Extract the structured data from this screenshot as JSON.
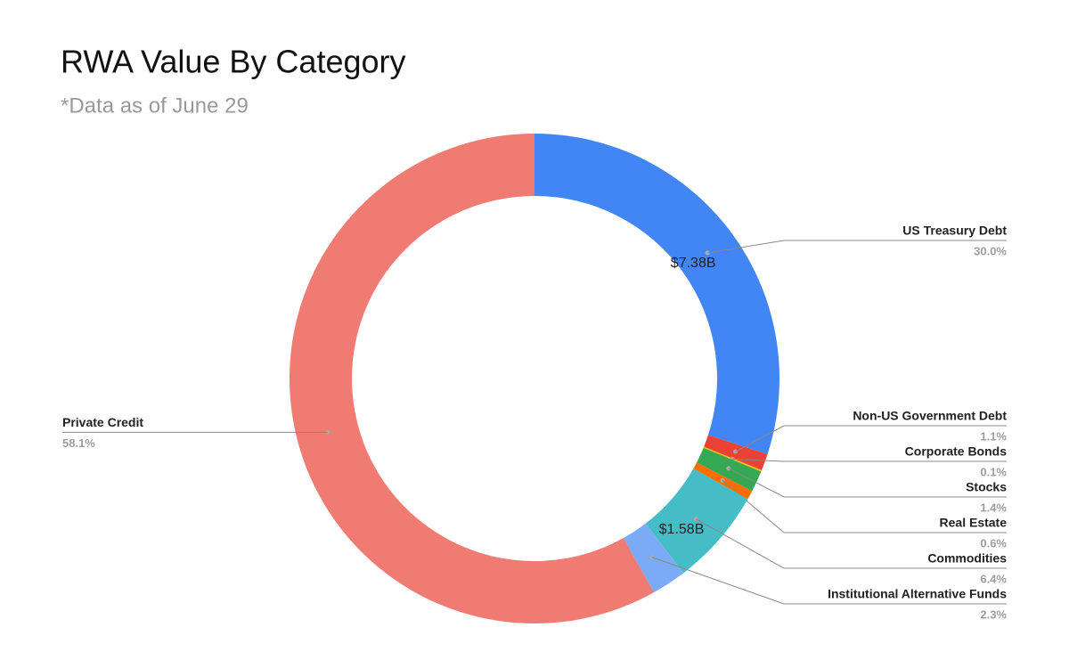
{
  "chart_data": {
    "type": "donut",
    "title": "RWA Value By Category",
    "subtitle": "*Data as of June 29",
    "categories": [
      "US Treasury Debt",
      "Non-US Government Debt",
      "Corporate Bonds",
      "Stocks",
      "Real Estate",
      "Commodities",
      "Institutional Alternative Funds",
      "Private Credit"
    ],
    "values": [
      30.0,
      1.1,
      0.1,
      1.4,
      0.6,
      6.4,
      2.3,
      58.1
    ],
    "value_labels": [
      "30.0%",
      "1.1%",
      "0.1%",
      "1.4%",
      "0.6%",
      "6.4%",
      "2.3%",
      "58.1%"
    ],
    "amount_labels": [
      "$7.38B",
      null,
      null,
      null,
      null,
      "$1.58B",
      null,
      null
    ],
    "colors": [
      "#4285f4",
      "#ea4335",
      "#fbbc04",
      "#34a853",
      "#ff6d01",
      "#46bdc6",
      "#7baaf7",
      "#f07b72"
    ]
  }
}
